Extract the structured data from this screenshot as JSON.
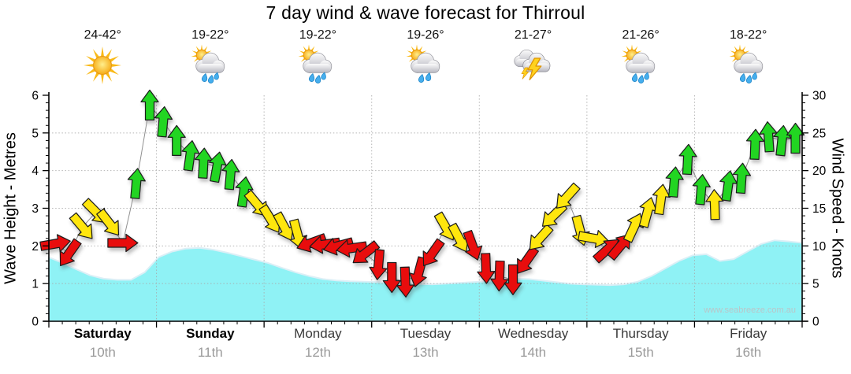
{
  "title": "7 day wind & wave forecast for Thirroul",
  "watermark": "www.seabreeze.com.au",
  "days": [
    {
      "name": "Saturday",
      "date": "10th",
      "temp": "24-42°",
      "icon": "sunny",
      "weekend": true
    },
    {
      "name": "Sunday",
      "date": "11th",
      "temp": "19-22°",
      "icon": "rain-showers",
      "weekend": true
    },
    {
      "name": "Monday",
      "date": "12th",
      "temp": "19-22°",
      "icon": "rain-showers",
      "weekend": false
    },
    {
      "name": "Tuesday",
      "date": "13th",
      "temp": "19-26°",
      "icon": "light-showers",
      "weekend": false
    },
    {
      "name": "Wednesday",
      "date": "14th",
      "temp": "21-27°",
      "icon": "thunderstorm",
      "weekend": false
    },
    {
      "name": "Thursday",
      "date": "15th",
      "temp": "21-26°",
      "icon": "rain-showers",
      "weekend": false
    },
    {
      "name": "Friday",
      "date": "16th",
      "temp": "18-22°",
      "icon": "rain-showers",
      "weekend": false
    }
  ],
  "chart_data": {
    "type": "area",
    "title": "7 day wind & wave forecast for Thirroul",
    "x": {
      "unit": "hours",
      "step": 3,
      "points_per_day": 8,
      "days": [
        "Saturday 10th",
        "Sunday 11th",
        "Monday 12th",
        "Tuesday 13th",
        "Wednesday 14th",
        "Thursday 15th",
        "Friday 16th"
      ]
    },
    "y_left": {
      "label": "Wave Height - Metres",
      "range": [
        0,
        6
      ],
      "major": 1,
      "minor": 0.2
    },
    "y_right": {
      "label": "Wind Speed - Knots",
      "range": [
        0,
        30
      ],
      "major": 5,
      "minor": 1
    },
    "grid": {
      "horizontal_at_knots": [
        5,
        10,
        15,
        20,
        25
      ],
      "vertical_at_day_boundaries": true,
      "style": "dotted"
    },
    "wave_height_m": [
      1.7,
      1.55,
      1.38,
      1.22,
      1.13,
      1.1,
      1.1,
      1.3,
      1.7,
      1.85,
      1.93,
      1.95,
      1.9,
      1.82,
      1.73,
      1.64,
      1.55,
      1.42,
      1.3,
      1.2,
      1.12,
      1.08,
      1.06,
      1.05,
      1.04,
      1.02,
      1.0,
      0.99,
      0.98,
      1.0,
      1.02,
      1.04,
      1.06,
      1.1,
      1.13,
      1.12,
      1.08,
      1.04,
      1.0,
      0.98,
      0.97,
      0.96,
      0.98,
      1.05,
      1.2,
      1.4,
      1.6,
      1.75,
      1.78,
      1.6,
      1.65,
      1.85,
      2.05,
      2.15,
      2.12,
      2.08
    ],
    "wind_points_kt_dir": [
      [
        10.3,
        80
      ],
      [
        9,
        215
      ],
      [
        12.5,
        140
      ],
      [
        14.5,
        135
      ],
      [
        13,
        142
      ],
      [
        10.4,
        90
      ],
      [
        18.3,
        5
      ],
      [
        28.7,
        0
      ],
      [
        26.5,
        5
      ],
      [
        24,
        0
      ],
      [
        22,
        8
      ],
      [
        21,
        3
      ],
      [
        20.5,
        10
      ],
      [
        19.5,
        5
      ],
      [
        17.2,
        8
      ],
      [
        15.5,
        140
      ],
      [
        13.5,
        148
      ],
      [
        12.5,
        152
      ],
      [
        11.5,
        165
      ],
      [
        10.4,
        250
      ],
      [
        10.2,
        262
      ],
      [
        10,
        255
      ],
      [
        9.7,
        262
      ],
      [
        9,
        232
      ],
      [
        7.5,
        185
      ],
      [
        5.8,
        180
      ],
      [
        5.2,
        178
      ],
      [
        6.5,
        195
      ],
      [
        9,
        215
      ],
      [
        12.5,
        150
      ],
      [
        11,
        152
      ],
      [
        10,
        160
      ],
      [
        7,
        178
      ],
      [
        6,
        182
      ],
      [
        5.5,
        180
      ],
      [
        8,
        215
      ],
      [
        11,
        222
      ],
      [
        14,
        226
      ],
      [
        16.5,
        222
      ],
      [
        12,
        165
      ],
      [
        11,
        100
      ],
      [
        9.5,
        48
      ],
      [
        10,
        40
      ],
      [
        12.5,
        25
      ],
      [
        14.5,
        15
      ],
      [
        16.2,
        8
      ],
      [
        18.5,
        5
      ],
      [
        21.5,
        3
      ],
      [
        17.5,
        5
      ],
      [
        15.5,
        358
      ],
      [
        18,
        8
      ],
      [
        19,
        4
      ],
      [
        23.5,
        2
      ],
      [
        24.5,
        356
      ],
      [
        24,
        6
      ],
      [
        24.3,
        0
      ]
    ],
    "dir_convention": "degrees clockwise, 0 = arrow pointing up (toward top of chart)",
    "wind_color_scale": [
      {
        "label": "light",
        "max_kt": 10.5,
        "color": "#E81010"
      },
      {
        "label": "moderate",
        "max_kt": 17,
        "color": "#FFE60A"
      },
      {
        "label": "fresh",
        "max_kt": 30,
        "color": "#23D523"
      }
    ],
    "legend": false
  },
  "colors": {
    "wave_fill": "#8FF2F5",
    "wave_edge": "#DCEFF6",
    "grid": "#A9A9A9",
    "wind_line": "#909090",
    "axis": "#000000",
    "arrow_outline": "#1A1A1A"
  }
}
